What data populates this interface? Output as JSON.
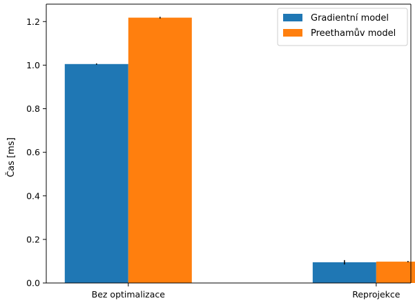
{
  "chart_data": {
    "type": "bar",
    "categories": [
      "Bez optimalizace",
      "Reprojekce"
    ],
    "series": [
      {
        "name": "Gradientní model",
        "values": [
          1.005,
          0.095
        ],
        "errors": [
          0.003,
          0.01
        ],
        "color": "#1f77b4"
      },
      {
        "name": "Preethamův model",
        "values": [
          1.218,
          0.098
        ],
        "errors": [
          0.004,
          0.003
        ],
        "color": "#ff7f0e"
      }
    ],
    "title": "",
    "xlabel": "",
    "ylabel": "Čas [ms]",
    "ylim": [
      0,
      1.28
    ],
    "yticks": [
      "0.0",
      "0.2",
      "0.4",
      "0.6",
      "0.8",
      "1.0",
      "1.2"
    ],
    "grid": false,
    "legend": "top-right"
  }
}
